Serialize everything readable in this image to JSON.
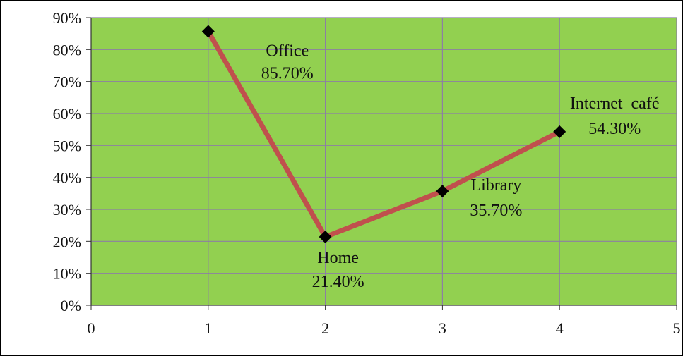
{
  "chart_data": {
    "type": "line",
    "title": "",
    "xlabel": "",
    "ylabel": "",
    "xlim": [
      0,
      5
    ],
    "ylim": [
      0,
      90
    ],
    "x_ticks": [
      "0",
      "1",
      "2",
      "3",
      "4",
      "5"
    ],
    "y_ticks": [
      "0%",
      "10%",
      "20%",
      "30%",
      "40%",
      "50%",
      "60%",
      "70%",
      "80%",
      "90%"
    ],
    "grid": true,
    "legend": "none",
    "series": [
      {
        "x": [
          1,
          2,
          3,
          4
        ],
        "y": [
          85.7,
          21.4,
          35.7,
          54.3
        ],
        "point_labels": [
          {
            "name": "Office",
            "value": "85.70%"
          },
          {
            "name": "Home",
            "value": "21.40%"
          },
          {
            "name": "Library",
            "value": "35.70%"
          },
          {
            "name": "Internet  café",
            "value": "54.30%"
          }
        ]
      }
    ],
    "colors": {
      "plot_background": "#92d050",
      "line": "#c0504d",
      "marker": "#000000",
      "grid": "#8c7fa3"
    }
  }
}
